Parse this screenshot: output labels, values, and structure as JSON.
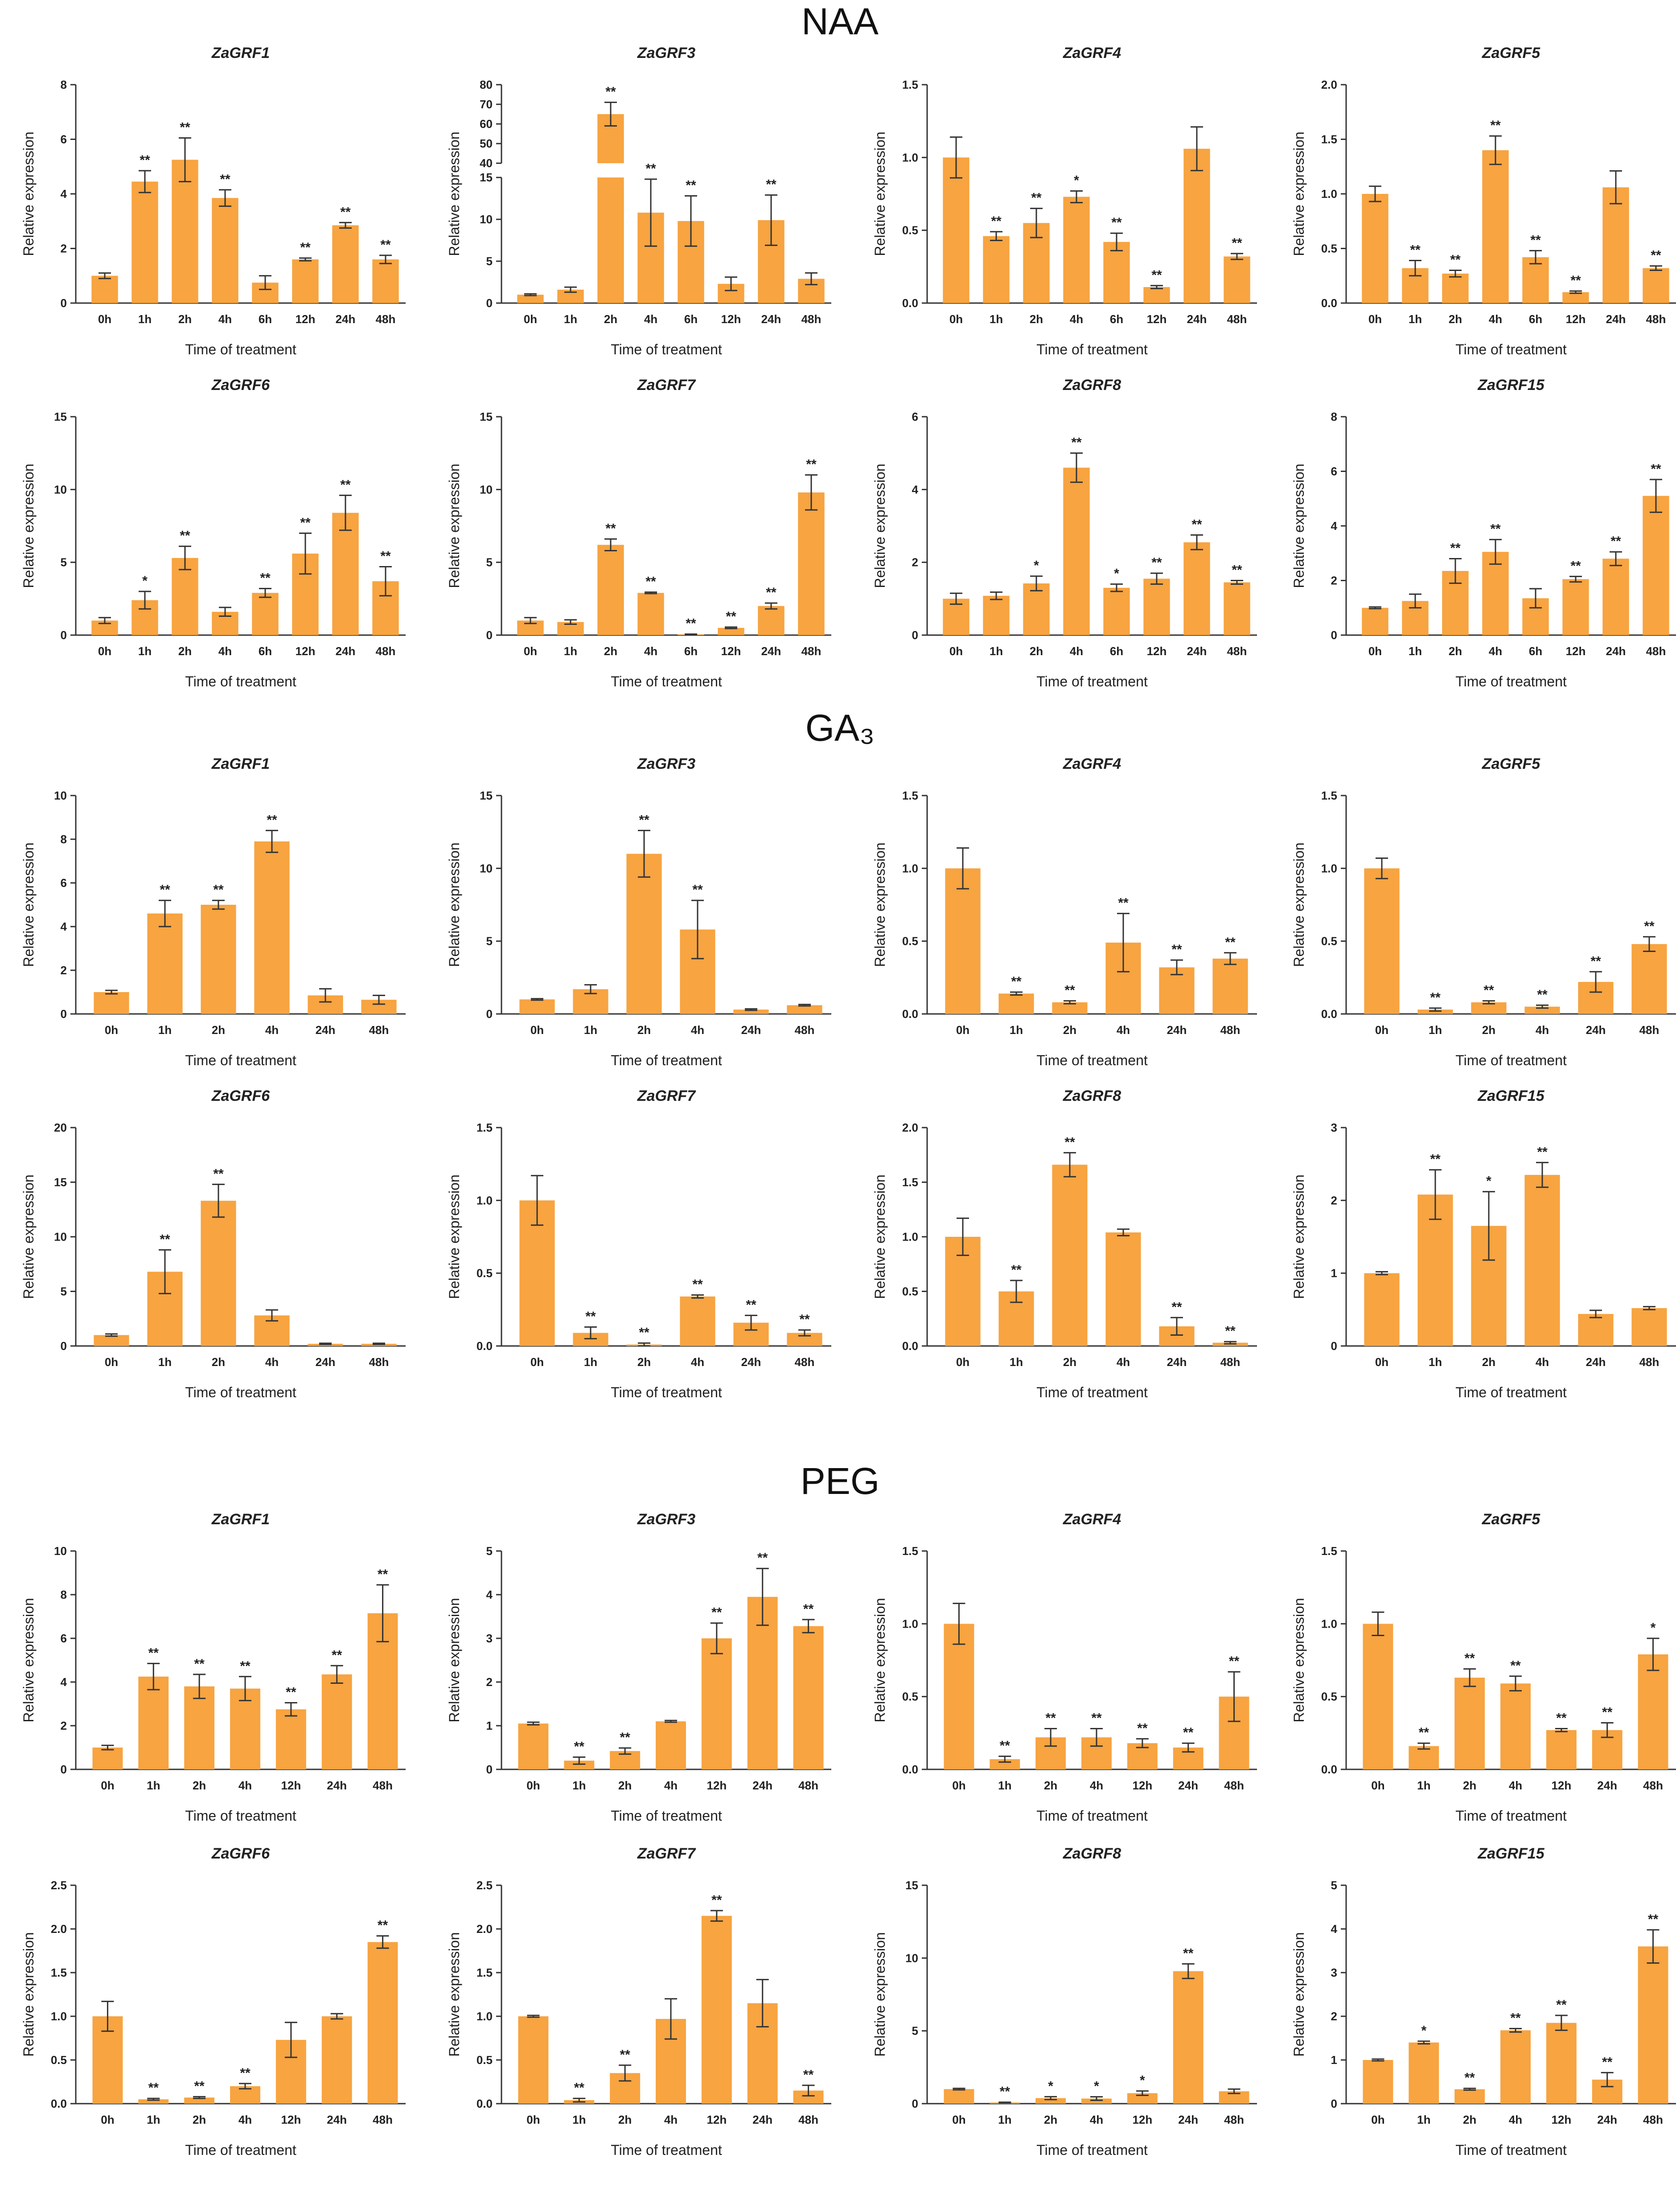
{
  "figure": {
    "sections": [
      "NAA",
      "GA₃",
      "PEG"
    ]
  },
  "chart_data": [
    {
      "section": "NAA",
      "type": "bar",
      "title": "ZaGRF1",
      "xlabel": "Time of treatment",
      "ylabel": "Relative expression",
      "categories": [
        "0h",
        "1h",
        "2h",
        "4h",
        "6h",
        "12h",
        "24h",
        "48h"
      ],
      "values": [
        1.0,
        4.45,
        5.25,
        3.85,
        0.75,
        1.6,
        2.85,
        1.6
      ],
      "errors": [
        0.1,
        0.4,
        0.8,
        0.3,
        0.25,
        0.05,
        0.1,
        0.15
      ],
      "significance": [
        "",
        "**",
        "**",
        "**",
        "",
        "**",
        "**",
        "**"
      ],
      "ylim": [
        0,
        8
      ],
      "yticks": [
        0,
        2,
        4,
        6,
        8
      ]
    },
    {
      "section": "NAA",
      "type": "bar",
      "title": "ZaGRF3",
      "xlabel": "Time of treatment",
      "ylabel": "Relative expression",
      "categories": [
        "0h",
        "1h",
        "2h",
        "4h",
        "6h",
        "12h",
        "24h",
        "48h"
      ],
      "values": [
        1.0,
        1.6,
        65,
        10.8,
        9.8,
        2.3,
        9.9,
        2.9
      ],
      "errors": [
        0.1,
        0.3,
        6,
        4,
        3,
        0.8,
        3,
        0.7
      ],
      "significance": [
        "",
        "",
        "**",
        "**",
        "**",
        "",
        "**",
        ""
      ],
      "ylim": [
        0,
        80
      ],
      "yticks": [
        0,
        5,
        10,
        15,
        40,
        50,
        60,
        70,
        80
      ],
      "axis_break": [
        15,
        40
      ]
    },
    {
      "section": "NAA",
      "type": "bar",
      "title": "ZaGRF4",
      "xlabel": "Time of treatment",
      "ylabel": "Relative expression",
      "categories": [
        "0h",
        "1h",
        "2h",
        "4h",
        "6h",
        "12h",
        "24h",
        "48h"
      ],
      "values": [
        1.0,
        0.46,
        0.55,
        0.73,
        0.42,
        0.11,
        1.06,
        0.32
      ],
      "errors": [
        0.14,
        0.03,
        0.1,
        0.04,
        0.06,
        0.01,
        0.15,
        0.02
      ],
      "significance": [
        "",
        "**",
        "**",
        "*",
        "**",
        "**",
        "",
        "**"
      ],
      "ylim": [
        0,
        1.5
      ],
      "yticks": [
        0.0,
        0.5,
        1.0,
        1.5
      ]
    },
    {
      "section": "NAA",
      "type": "bar",
      "title": "ZaGRF5",
      "xlabel": "Time of treatment",
      "ylabel": "Relative expression",
      "categories": [
        "0h",
        "1h",
        "2h",
        "4h",
        "6h",
        "12h",
        "24h",
        "48h"
      ],
      "values": [
        1.0,
        0.32,
        0.27,
        1.4,
        0.42,
        0.1,
        1.06,
        0.32
      ],
      "errors": [
        0.07,
        0.07,
        0.03,
        0.13,
        0.06,
        0.01,
        0.15,
        0.02
      ],
      "significance": [
        "",
        "**",
        "**",
        "**",
        "**",
        "**",
        "",
        "**"
      ],
      "ylim": [
        0,
        2.0
      ],
      "yticks": [
        0.0,
        0.5,
        1.0,
        1.5,
        2.0
      ]
    },
    {
      "section": "NAA",
      "type": "bar",
      "title": "ZaGRF6",
      "xlabel": "Time of treatment",
      "ylabel": "Relative expression",
      "categories": [
        "0h",
        "1h",
        "2h",
        "4h",
        "6h",
        "12h",
        "24h",
        "48h"
      ],
      "values": [
        1.0,
        2.4,
        5.3,
        1.6,
        2.9,
        5.6,
        8.4,
        3.7
      ],
      "errors": [
        0.2,
        0.6,
        0.8,
        0.3,
        0.3,
        1.4,
        1.2,
        1.0
      ],
      "significance": [
        "",
        "*",
        "**",
        "",
        "**",
        "**",
        "**",
        "**"
      ],
      "ylim": [
        0,
        15
      ],
      "yticks": [
        0,
        5,
        10,
        15
      ]
    },
    {
      "section": "NAA",
      "type": "bar",
      "title": "ZaGRF7",
      "xlabel": "Time of treatment",
      "ylabel": "Relative expression",
      "categories": [
        "0h",
        "1h",
        "2h",
        "4h",
        "6h",
        "12h",
        "24h",
        "48h"
      ],
      "values": [
        1.0,
        0.9,
        6.2,
        2.9,
        0.05,
        0.5,
        2.0,
        9.8
      ],
      "errors": [
        0.2,
        0.15,
        0.4,
        0.05,
        0.02,
        0.05,
        0.2,
        1.2
      ],
      "significance": [
        "",
        "",
        "**",
        "**",
        "**",
        "**",
        "**",
        "**"
      ],
      "ylim": [
        0,
        15
      ],
      "yticks": [
        0,
        5,
        10,
        15
      ]
    },
    {
      "section": "NAA",
      "type": "bar",
      "title": "ZaGRF8",
      "xlabel": "Time of treatment",
      "ylabel": "Relative expression",
      "categories": [
        "0h",
        "1h",
        "2h",
        "4h",
        "6h",
        "12h",
        "24h",
        "48h"
      ],
      "values": [
        1.0,
        1.08,
        1.42,
        4.6,
        1.3,
        1.55,
        2.55,
        1.45
      ],
      "errors": [
        0.15,
        0.1,
        0.2,
        0.4,
        0.1,
        0.15,
        0.2,
        0.05
      ],
      "significance": [
        "",
        "",
        "*",
        "**",
        "*",
        "**",
        "**",
        "**"
      ],
      "ylim": [
        0,
        6
      ],
      "yticks": [
        0,
        2,
        4,
        6
      ]
    },
    {
      "section": "NAA",
      "type": "bar",
      "title": "ZaGRF15",
      "xlabel": "Time of treatment",
      "ylabel": "Relative expression",
      "categories": [
        "0h",
        "1h",
        "2h",
        "4h",
        "6h",
        "12h",
        "24h",
        "48h"
      ],
      "values": [
        1.0,
        1.25,
        2.35,
        3.05,
        1.35,
        2.05,
        2.8,
        5.1
      ],
      "errors": [
        0.03,
        0.25,
        0.45,
        0.45,
        0.35,
        0.1,
        0.25,
        0.6
      ],
      "significance": [
        "",
        "",
        "**",
        "**",
        "",
        "**",
        "**",
        "**"
      ],
      "ylim": [
        0,
        8
      ],
      "yticks": [
        0,
        2,
        4,
        6,
        8
      ]
    },
    {
      "section": "GA₃",
      "type": "bar",
      "title": "ZaGRF1",
      "xlabel": "Time of treatment",
      "ylabel": "Relative expression",
      "categories": [
        "0h",
        "1h",
        "2h",
        "4h",
        "24h",
        "48h"
      ],
      "values": [
        1.0,
        4.6,
        5.0,
        7.9,
        0.85,
        0.65
      ],
      "errors": [
        0.08,
        0.6,
        0.2,
        0.5,
        0.3,
        0.2
      ],
      "significance": [
        "",
        "**",
        "**",
        "**",
        "",
        ""
      ],
      "ylim": [
        0,
        10
      ],
      "yticks": [
        0,
        2,
        4,
        6,
        8,
        10
      ]
    },
    {
      "section": "GA₃",
      "type": "bar",
      "title": "ZaGRF3",
      "xlabel": "Time of treatment",
      "ylabel": "Relative expression",
      "categories": [
        "0h",
        "1h",
        "2h",
        "4h",
        "24h",
        "48h"
      ],
      "values": [
        1.0,
        1.7,
        11.0,
        5.8,
        0.3,
        0.6
      ],
      "errors": [
        0.05,
        0.3,
        1.6,
        2.0,
        0.05,
        0.05
      ],
      "significance": [
        "",
        "",
        "**",
        "**",
        "",
        ""
      ],
      "ylim": [
        0,
        15
      ],
      "yticks": [
        0,
        5,
        10,
        15
      ]
    },
    {
      "section": "GA₃",
      "type": "bar",
      "title": "ZaGRF4",
      "xlabel": "Time of treatment",
      "ylabel": "Relative expression",
      "categories": [
        "0h",
        "1h",
        "2h",
        "4h",
        "24h",
        "48h"
      ],
      "values": [
        1.0,
        0.14,
        0.08,
        0.49,
        0.32,
        0.38
      ],
      "errors": [
        0.14,
        0.01,
        0.01,
        0.2,
        0.05,
        0.04
      ],
      "significance": [
        "",
        "**",
        "**",
        "**",
        "**",
        "**"
      ],
      "ylim": [
        0,
        1.5
      ],
      "yticks": [
        0.0,
        0.5,
        1.0,
        1.5
      ]
    },
    {
      "section": "GA₃",
      "type": "bar",
      "title": "ZaGRF5",
      "xlabel": "Time of treatment",
      "ylabel": "Relative expression",
      "categories": [
        "0h",
        "1h",
        "2h",
        "4h",
        "24h",
        "48h"
      ],
      "values": [
        1.0,
        0.03,
        0.08,
        0.05,
        0.22,
        0.48
      ],
      "errors": [
        0.07,
        0.01,
        0.01,
        0.01,
        0.07,
        0.05
      ],
      "significance": [
        "",
        "**",
        "**",
        "**",
        "**",
        "**"
      ],
      "ylim": [
        0,
        1.5
      ],
      "yticks": [
        0.0,
        0.5,
        1.0,
        1.5
      ]
    },
    {
      "section": "GA₃",
      "type": "bar",
      "title": "ZaGRF6",
      "xlabel": "Time of treatment",
      "ylabel": "Relative expression",
      "categories": [
        "0h",
        "1h",
        "2h",
        "4h",
        "24h",
        "48h"
      ],
      "values": [
        1.0,
        6.8,
        13.3,
        2.8,
        0.2,
        0.2
      ],
      "errors": [
        0.1,
        2.0,
        1.5,
        0.5,
        0.05,
        0.05
      ],
      "significance": [
        "",
        "**",
        "**",
        "",
        "",
        ""
      ],
      "ylim": [
        0,
        20
      ],
      "yticks": [
        0,
        5,
        10,
        15,
        20
      ]
    },
    {
      "section": "GA₃",
      "type": "bar",
      "title": "ZaGRF7",
      "xlabel": "Time of treatment",
      "ylabel": "Relative expression",
      "categories": [
        "0h",
        "1h",
        "2h",
        "4h",
        "24h",
        "48h"
      ],
      "values": [
        1.0,
        0.09,
        0.01,
        0.34,
        0.16,
        0.09
      ],
      "errors": [
        0.17,
        0.04,
        0.01,
        0.01,
        0.05,
        0.02
      ],
      "significance": [
        "",
        "**",
        "**",
        "**",
        "**",
        "**"
      ],
      "ylim": [
        0,
        1.5
      ],
      "yticks": [
        0.0,
        0.5,
        1.0,
        1.5
      ]
    },
    {
      "section": "GA₃",
      "type": "bar",
      "title": "ZaGRF8",
      "xlabel": "Time of treatment",
      "ylabel": "Relative expression",
      "categories": [
        "0h",
        "1h",
        "2h",
        "4h",
        "24h",
        "48h"
      ],
      "values": [
        1.0,
        0.5,
        1.66,
        1.04,
        0.18,
        0.03
      ],
      "errors": [
        0.17,
        0.1,
        0.11,
        0.03,
        0.08,
        0.01
      ],
      "significance": [
        "",
        "**",
        "**",
        "",
        "**",
        "**"
      ],
      "ylim": [
        0,
        2.0
      ],
      "yticks": [
        0.0,
        0.5,
        1.0,
        1.5,
        2.0
      ]
    },
    {
      "section": "GA₃",
      "type": "bar",
      "title": "ZaGRF15",
      "xlabel": "Time of treatment",
      "ylabel": "Relative expression",
      "categories": [
        "0h",
        "1h",
        "2h",
        "4h",
        "24h",
        "48h"
      ],
      "values": [
        1.0,
        2.08,
        1.65,
        2.35,
        0.44,
        0.52
      ],
      "errors": [
        0.02,
        0.34,
        0.47,
        0.17,
        0.05,
        0.02
      ],
      "significance": [
        "",
        "**",
        "*",
        "**",
        "",
        ""
      ],
      "ylim": [
        0,
        3
      ],
      "yticks": [
        0,
        1,
        2,
        3
      ]
    },
    {
      "section": "PEG",
      "type": "bar",
      "title": "ZaGRF1",
      "xlabel": "Time of treatment",
      "ylabel": "Relative expression",
      "categories": [
        "0h",
        "1h",
        "2h",
        "4h",
        "12h",
        "24h",
        "48h"
      ],
      "values": [
        1.0,
        4.25,
        3.8,
        3.7,
        2.75,
        4.35,
        7.15
      ],
      "errors": [
        0.1,
        0.6,
        0.55,
        0.55,
        0.3,
        0.4,
        1.3
      ],
      "significance": [
        "",
        "**",
        "**",
        "**",
        "**",
        "**",
        "**"
      ],
      "ylim": [
        0,
        10
      ],
      "yticks": [
        0,
        2,
        4,
        6,
        8,
        10
      ]
    },
    {
      "section": "PEG",
      "type": "bar",
      "title": "ZaGRF3",
      "xlabel": "Time of treatment",
      "ylabel": "Relative expression",
      "categories": [
        "0h",
        "1h",
        "2h",
        "4h",
        "12h",
        "24h",
        "48h"
      ],
      "values": [
        1.05,
        0.2,
        0.42,
        1.1,
        3.0,
        3.95,
        3.28
      ],
      "errors": [
        0.03,
        0.08,
        0.07,
        0.02,
        0.35,
        0.65,
        0.15
      ],
      "significance": [
        "",
        "**",
        "**",
        "",
        "**",
        "**",
        "**"
      ],
      "ylim": [
        0,
        5
      ],
      "yticks": [
        0,
        1,
        2,
        3,
        4,
        5
      ]
    },
    {
      "section": "PEG",
      "type": "bar",
      "title": "ZaGRF4",
      "xlabel": "Time of treatment",
      "ylabel": "Relative expression",
      "categories": [
        "0h",
        "1h",
        "2h",
        "4h",
        "12h",
        "24h",
        "48h"
      ],
      "values": [
        1.0,
        0.07,
        0.22,
        0.22,
        0.18,
        0.15,
        0.5
      ],
      "errors": [
        0.14,
        0.02,
        0.06,
        0.06,
        0.03,
        0.03,
        0.17
      ],
      "significance": [
        "",
        "**",
        "**",
        "**",
        "**",
        "**",
        "**"
      ],
      "ylim": [
        0,
        1.5
      ],
      "yticks": [
        0.0,
        0.5,
        1.0,
        1.5
      ]
    },
    {
      "section": "PEG",
      "type": "bar",
      "title": "ZaGRF5",
      "xlabel": "Time of treatment",
      "ylabel": "Relative expression",
      "categories": [
        "0h",
        "1h",
        "2h",
        "4h",
        "12h",
        "24h",
        "48h"
      ],
      "values": [
        1.0,
        0.16,
        0.63,
        0.59,
        0.27,
        0.27,
        0.79
      ],
      "errors": [
        0.08,
        0.02,
        0.06,
        0.05,
        0.01,
        0.05,
        0.11
      ],
      "significance": [
        "",
        "**",
        "**",
        "**",
        "**",
        "**",
        "*"
      ],
      "ylim": [
        0,
        1.5
      ],
      "yticks": [
        0.0,
        0.5,
        1.0,
        1.5
      ]
    },
    {
      "section": "PEG",
      "type": "bar",
      "title": "ZaGRF6",
      "xlabel": "Time of treatment",
      "ylabel": "Relative expression",
      "categories": [
        "0h",
        "1h",
        "2h",
        "4h",
        "12h",
        "24h",
        "48h"
      ],
      "values": [
        1.0,
        0.05,
        0.07,
        0.2,
        0.73,
        1.0,
        1.85
      ],
      "errors": [
        0.17,
        0.01,
        0.01,
        0.03,
        0.2,
        0.03,
        0.07
      ],
      "significance": [
        "",
        "**",
        "**",
        "**",
        "",
        "",
        "**"
      ],
      "ylim": [
        0,
        2.5
      ],
      "yticks": [
        0.0,
        0.5,
        1.0,
        1.5,
        2.0,
        2.5
      ]
    },
    {
      "section": "PEG",
      "type": "bar",
      "title": "ZaGRF7",
      "xlabel": "Time of treatment",
      "ylabel": "Relative expression",
      "categories": [
        "0h",
        "1h",
        "2h",
        "4h",
        "12h",
        "24h",
        "48h"
      ],
      "values": [
        1.0,
        0.04,
        0.35,
        0.97,
        2.15,
        1.15,
        0.15
      ],
      "errors": [
        0.01,
        0.02,
        0.09,
        0.23,
        0.06,
        0.27,
        0.06
      ],
      "significance": [
        "",
        "**",
        "**",
        "",
        "**",
        "",
        "**"
      ],
      "ylim": [
        0,
        2.5
      ],
      "yticks": [
        0.0,
        0.5,
        1.0,
        1.5,
        2.0,
        2.5
      ]
    },
    {
      "section": "PEG",
      "type": "bar",
      "title": "ZaGRF8",
      "xlabel": "Time of treatment",
      "ylabel": "Relative expression",
      "categories": [
        "0h",
        "1h",
        "2h",
        "4h",
        "12h",
        "24h",
        "48h"
      ],
      "values": [
        1.0,
        0.08,
        0.38,
        0.35,
        0.72,
        9.1,
        0.85
      ],
      "errors": [
        0.05,
        0.02,
        0.1,
        0.12,
        0.15,
        0.5,
        0.15
      ],
      "significance": [
        "",
        "**",
        "*",
        "*",
        "*",
        "**",
        ""
      ],
      "ylim": [
        0,
        15
      ],
      "yticks": [
        0,
        5,
        10,
        15
      ]
    },
    {
      "section": "PEG",
      "type": "bar",
      "title": "ZaGRF15",
      "xlabel": "Time of treatment",
      "ylabel": "Relative expression",
      "categories": [
        "0h",
        "1h",
        "2h",
        "4h",
        "12h",
        "24h",
        "48h"
      ],
      "values": [
        1.0,
        1.4,
        0.33,
        1.68,
        1.85,
        0.55,
        3.6
      ],
      "errors": [
        0.02,
        0.03,
        0.02,
        0.04,
        0.17,
        0.16,
        0.38
      ],
      "significance": [
        "",
        "*",
        "**",
        "**",
        "**",
        "**",
        "**"
      ],
      "ylim": [
        0,
        5
      ],
      "yticks": [
        0,
        1,
        2,
        3,
        4,
        5
      ]
    }
  ],
  "colors": {
    "bar": "#F7A441",
    "axis": "#333333",
    "text": "#222222"
  }
}
